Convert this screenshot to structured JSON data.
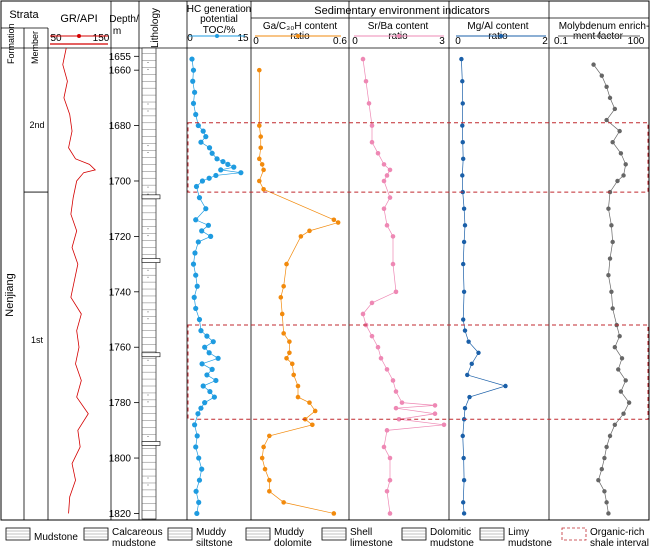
{
  "header": {
    "strata": "Strata",
    "formation": "Formation",
    "member": "Member",
    "gr": "GR/API",
    "gr_min": "50",
    "gr_max": "150",
    "depth_line1": "Depth/",
    "depth_line2": "m",
    "lithology": "Lithology",
    "hc_line1": "HC generation",
    "hc_line2": "potential",
    "toc": "TOC/%",
    "toc_min": "0",
    "toc_max": "15",
    "sed": "Sedimentary environment indicators",
    "ga_line1": "Ga/C₃₀H content",
    "ga_line2": "ratio",
    "ga_min": "0",
    "ga_max": "0.6",
    "sr_line1": "Sr/Ba content",
    "sr_line2": "ratio",
    "sr_min": "0",
    "sr_max": "3",
    "mg_line1": "Mg/Al content",
    "mg_line2": "ratio",
    "mg_min": "0",
    "mg_max": "2",
    "mo_line1": "Molybdenum enrich-",
    "mo_line2": "ment factor",
    "mo_min": "0.1",
    "mo_max": "100"
  },
  "strata": {
    "formation": "Nenjiang",
    "member_upper": "2nd",
    "member_lower": "1st"
  },
  "legend": [
    {
      "label1": "Mudstone",
      "label2": ""
    },
    {
      "label1": "Calcareous",
      "label2": "mudstone"
    },
    {
      "label1": "Muddy",
      "label2": "siltstone"
    },
    {
      "label1": "Muddy",
      "label2": "dolomite"
    },
    {
      "label1": "Shell",
      "label2": "limestone"
    },
    {
      "label1": "Dolomitic",
      "label2": "mudstone"
    },
    {
      "label1": "Limy",
      "label2": "mudstone"
    },
    {
      "label1": "Organic-rich",
      "label2": "shale interval"
    }
  ],
  "colors": {
    "gr": "#d40000",
    "toc": "#1e9be0",
    "ga": "#f28a0c",
    "sr": "#ee88b4",
    "mg": "#1a5fa8",
    "mo": "#666666",
    "interval": "#c0282f"
  },
  "chart_data": {
    "type": "line",
    "depth_axis": {
      "label": "Depth/m",
      "range": [
        1652,
        1822
      ],
      "ticks": [
        1655,
        1660,
        1680,
        1700,
        1720,
        1740,
        1760,
        1780,
        1800,
        1820
      ]
    },
    "member_boundary_depth": 1704,
    "organic_rich_intervals": [
      [
        1679,
        1704
      ],
      [
        1752,
        1786
      ]
    ],
    "GR": {
      "unit": "API",
      "xlim": [
        50,
        150
      ],
      "depth": [
        1652,
        1658,
        1664,
        1670,
        1676,
        1682,
        1688,
        1692,
        1694,
        1696,
        1697,
        1700,
        1706,
        1712,
        1718,
        1724,
        1730,
        1736,
        1742,
        1748,
        1754,
        1760,
        1766,
        1772,
        1778,
        1784,
        1790,
        1796,
        1802,
        1808,
        1814,
        1820
      ],
      "values": [
        78,
        72,
        80,
        74,
        84,
        88,
        82,
        94,
        118,
        128,
        108,
        96,
        90,
        86,
        96,
        88,
        98,
        92,
        86,
        104,
        96,
        100,
        94,
        104,
        96,
        116,
        98,
        102,
        88,
        94,
        84,
        82
      ]
    },
    "TOC": {
      "unit": "%",
      "xlim": [
        0,
        15
      ],
      "depth": [
        1656,
        1660,
        1664,
        1668,
        1672,
        1676,
        1680,
        1682,
        1684,
        1686,
        1688,
        1690,
        1692,
        1693,
        1694,
        1695,
        1696,
        1697,
        1698,
        1699,
        1700,
        1702,
        1706,
        1710,
        1714,
        1716,
        1718,
        1720,
        1722,
        1726,
        1730,
        1734,
        1738,
        1742,
        1746,
        1750,
        1754,
        1756,
        1758,
        1760,
        1762,
        1764,
        1766,
        1768,
        1770,
        1772,
        1774,
        1776,
        1778,
        1780,
        1782,
        1784,
        1788,
        1792,
        1796,
        1800,
        1804,
        1808,
        1812,
        1816,
        1820
      ],
      "values": [
        0.8,
        1.2,
        1.0,
        1.5,
        1.2,
        1.8,
        2.5,
        3.8,
        4.5,
        3.2,
        5.5,
        6.2,
        7.5,
        9.1,
        10.4,
        12.0,
        8.5,
        13.9,
        7.2,
        5.4,
        3.6,
        2.0,
        2.8,
        4.5,
        1.8,
        5.2,
        3.4,
        5.8,
        2.5,
        1.6,
        1.2,
        1.8,
        2.2,
        1.4,
        1.8,
        2.8,
        3.2,
        4.8,
        6.5,
        4.2,
        5.4,
        7.8,
        3.5,
        6.2,
        4.8,
        7.2,
        3.8,
        5.6,
        6.8,
        4.2,
        3.2,
        2.4,
        1.5,
        2.2,
        1.8,
        2.6,
        3.4,
        2.8,
        1.9,
        2.6,
        2.1
      ]
    },
    "Ga_C30H": {
      "xlim": [
        0,
        0.6
      ],
      "depth": [
        1660,
        1680,
        1684,
        1688,
        1692,
        1694,
        1696,
        1700,
        1703,
        1714,
        1715,
        1718,
        1720,
        1730,
        1738,
        1742,
        1748,
        1755,
        1758,
        1762,
        1764,
        1766,
        1770,
        1774,
        1778,
        1780,
        1783,
        1786,
        1788,
        1792,
        1796,
        1800,
        1804,
        1808,
        1812,
        1816,
        1820
      ],
      "values": [
        0.03,
        0.03,
        0.04,
        0.04,
        0.03,
        0.05,
        0.06,
        0.03,
        0.06,
        0.55,
        0.58,
        0.38,
        0.32,
        0.22,
        0.2,
        0.18,
        0.19,
        0.2,
        0.24,
        0.24,
        0.22,
        0.26,
        0.27,
        0.3,
        0.3,
        0.38,
        0.42,
        0.35,
        0.4,
        0.1,
        0.06,
        0.05,
        0.07,
        0.1,
        0.1,
        0.2,
        0.55
      ]
    },
    "Sr_Ba": {
      "xlim": [
        0,
        3
      ],
      "depth": [
        1656,
        1664,
        1672,
        1680,
        1686,
        1690,
        1694,
        1696,
        1698,
        1700,
        1706,
        1710,
        1716,
        1720,
        1730,
        1740,
        1744,
        1748,
        1752,
        1756,
        1760,
        1764,
        1768,
        1772,
        1776,
        1780,
        1781,
        1782,
        1784,
        1786,
        1788,
        1790,
        1796,
        1800,
        1808,
        1812,
        1820
      ],
      "values": [
        0.3,
        0.4,
        0.5,
        0.6,
        0.6,
        0.8,
        1.0,
        1.2,
        1.1,
        1.0,
        1.2,
        1.0,
        1.1,
        1.3,
        1.3,
        1.4,
        0.6,
        0.3,
        0.4,
        0.6,
        0.8,
        0.9,
        1.1,
        1.3,
        1.4,
        1.6,
        2.7,
        1.4,
        2.7,
        1.5,
        3.0,
        1.1,
        1.0,
        1.2,
        1.2,
        1.1,
        1.2
      ]
    },
    "Mg_Al": {
      "xlim": [
        0,
        2
      ],
      "depth": [
        1656,
        1664,
        1672,
        1680,
        1686,
        1692,
        1698,
        1704,
        1710,
        1716,
        1722,
        1730,
        1740,
        1750,
        1754,
        1758,
        1762,
        1766,
        1770,
        1774,
        1778,
        1782,
        1786,
        1792,
        1800,
        1808,
        1816,
        1820
      ],
      "values": [
        0.12,
        0.14,
        0.15,
        0.14,
        0.15,
        0.16,
        0.14,
        0.15,
        0.18,
        0.2,
        0.18,
        0.16,
        0.18,
        0.16,
        0.2,
        0.28,
        0.5,
        0.35,
        0.25,
        1.1,
        0.3,
        0.2,
        0.18,
        0.15,
        0.17,
        0.18,
        0.16,
        0.18
      ]
    },
    "Mo_EF": {
      "xlim": [
        0.1,
        100
      ],
      "scale": "log",
      "depth": [
        1658,
        1662,
        1666,
        1670,
        1674,
        1678,
        1682,
        1686,
        1690,
        1694,
        1698,
        1700,
        1704,
        1710,
        1716,
        1722,
        1728,
        1734,
        1740,
        1746,
        1752,
        1756,
        1760,
        1764,
        1768,
        1772,
        1776,
        1780,
        1784,
        1788,
        1792,
        1796,
        1800,
        1804,
        1808,
        1812,
        1816,
        1820
      ],
      "values": [
        2,
        4,
        6,
        8,
        12,
        6,
        18,
        10,
        20,
        30,
        25,
        15,
        8,
        7,
        9,
        10,
        8,
        7,
        9,
        10,
        14,
        18,
        12,
        22,
        16,
        30,
        20,
        40,
        25,
        12,
        8,
        6,
        5,
        4,
        3,
        5,
        6,
        7
      ]
    }
  }
}
